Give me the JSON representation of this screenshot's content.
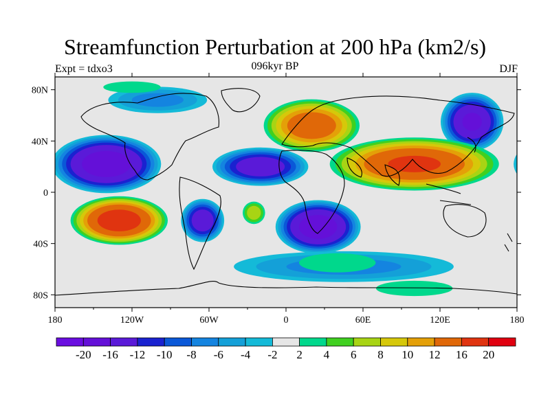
{
  "title": "Streamfunction Perturbation at 200 hPa (km2/s)",
  "subtitle_left": "Expt = tdxo3",
  "subtitle_center": "096kyr BP",
  "subtitle_right": "DJF",
  "map": {
    "projection": "cylindrical-equidistant",
    "lon_range": [
      -180,
      180
    ],
    "lat_range": [
      -90,
      90
    ],
    "background_color": "#e6e6e6",
    "x_ticks": [
      {
        "lon": -180,
        "label": "180"
      },
      {
        "lon": -120,
        "label": "120W"
      },
      {
        "lon": -60,
        "label": "60W"
      },
      {
        "lon": 0,
        "label": "0"
      },
      {
        "lon": 60,
        "label": "60E"
      },
      {
        "lon": 120,
        "label": "120E"
      },
      {
        "lon": 180,
        "label": "180"
      }
    ],
    "y_ticks": [
      {
        "lat": 80,
        "label": "80N"
      },
      {
        "lat": 40,
        "label": "40N"
      },
      {
        "lat": 0,
        "label": "0"
      },
      {
        "lat": -40,
        "label": "40S"
      },
      {
        "lat": -80,
        "label": "80S"
      }
    ],
    "blobs": [
      {
        "name": "north-pacific-high",
        "lon": 145,
        "lat": 55,
        "rlon": 26,
        "rlat": 24,
        "value": -16
      },
      {
        "name": "north-atlantic-high",
        "lon": 20,
        "lat": 52,
        "rlon": 40,
        "rlat": 22,
        "value": 14
      },
      {
        "name": "subtropical-pacific-low",
        "lon": -140,
        "lat": 22,
        "rlon": 45,
        "rlat": 24,
        "value": -18
      },
      {
        "name": "subtropical-atlantic-low",
        "lon": -20,
        "lat": 20,
        "rlon": 40,
        "rlat": 16,
        "value": -14
      },
      {
        "name": "asian-monsoon-high",
        "lon": 100,
        "lat": 22,
        "rlon": 70,
        "rlat": 22,
        "value": 16
      },
      {
        "name": "south-pacific-high",
        "lon": -130,
        "lat": -22,
        "rlon": 40,
        "rlat": 20,
        "value": 18
      },
      {
        "name": "south-america-low",
        "lon": -65,
        "lat": -22,
        "rlon": 18,
        "rlat": 18,
        "value": -14
      },
      {
        "name": "south-atlantic-high",
        "lon": -25,
        "lat": -16,
        "rlon": 10,
        "rlat": 10,
        "value": 7
      },
      {
        "name": "south-indian-low",
        "lon": 25,
        "lat": -27,
        "rlon": 35,
        "rlat": 22,
        "value": -18
      },
      {
        "name": "southern-ocean-ring",
        "lon": 45,
        "lat": -58,
        "rlon": 100,
        "rlat": 14,
        "value": -6
      },
      {
        "name": "antarctic-positive-a",
        "lon": 100,
        "lat": -75,
        "rlon": 40,
        "rlat": 8,
        "value": 3
      },
      {
        "name": "south-atlantic-positive",
        "lon": 40,
        "lat": -55,
        "rlon": 40,
        "rlat": 10,
        "value": 3
      },
      {
        "name": "arctic-low-america",
        "lon": -100,
        "lat": 72,
        "rlon": 45,
        "rlat": 12,
        "value": -6
      },
      {
        "name": "arctic-positive",
        "lon": -120,
        "lat": 82,
        "rlon": 30,
        "rlat": 6,
        "value": 3
      }
    ]
  },
  "colorbar": {
    "colors": [
      "#6a0ee0",
      "#6410d8",
      "#5a1ad8",
      "#1a22d0",
      "#0a58d8",
      "#1484e0",
      "#14a0d8",
      "#14bad8",
      "#e6e6e6",
      "#00d88c",
      "#40d020",
      "#a8d414",
      "#d6c80a",
      "#e4a008",
      "#e06808",
      "#e03410",
      "#e00010"
    ],
    "labels": [
      "-20",
      "-16",
      "-12",
      "-10",
      "-8",
      "-6",
      "-4",
      "-2",
      "2",
      "4",
      "6",
      "8",
      "10",
      "12",
      "16",
      "20"
    ]
  }
}
